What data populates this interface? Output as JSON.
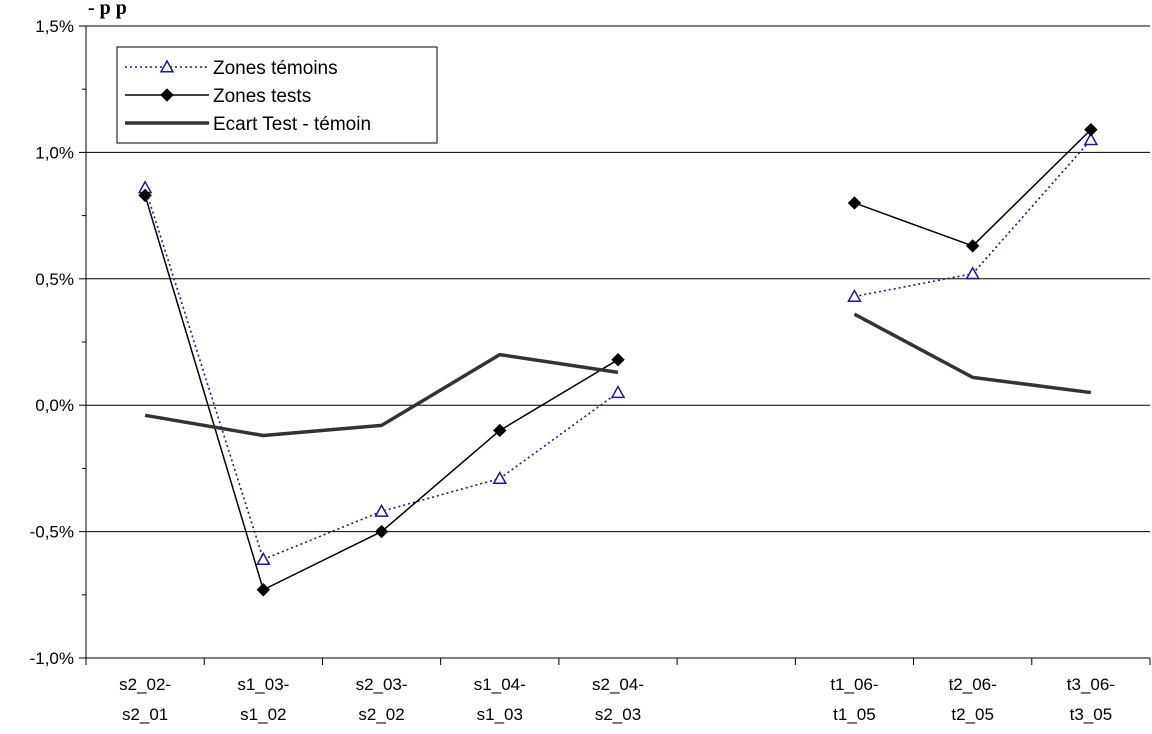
{
  "title_fragment": "- p p",
  "chart_data": {
    "type": "line",
    "categories": [
      [
        "s2_02-",
        "s2_01"
      ],
      [
        "s1_03-",
        "s1_02"
      ],
      [
        "s2_03-",
        "s2_02"
      ],
      [
        "s1_04-",
        "s1_03"
      ],
      [
        "s2_04-",
        "s2_03"
      ],
      [
        "",
        ""
      ],
      [
        "t1_06-",
        "t1_05"
      ],
      [
        "t2_06-",
        "t2_05"
      ],
      [
        "t3_06-",
        "t3_05"
      ]
    ],
    "ylim": [
      -1.0,
      1.5
    ],
    "yticks": [
      -1.0,
      -0.5,
      0.0,
      0.5,
      1.0,
      1.5
    ],
    "ytick_labels": [
      "-1,0%",
      "-0,5%",
      "0,0%",
      "0,5%",
      "1,0%",
      "1,5%"
    ],
    "grid": true,
    "legend_position": "top-left",
    "series": [
      {
        "name": "Zones témoins",
        "style": "dotted",
        "marker": "triangle-open",
        "color": "#1a1a8c",
        "values": [
          0.86,
          -0.61,
          -0.42,
          -0.29,
          0.05,
          null,
          0.43,
          0.52,
          1.05
        ]
      },
      {
        "name": "Zones tests",
        "style": "solid-thin",
        "marker": "diamond-filled",
        "color": "#000000",
        "values": [
          0.83,
          -0.73,
          -0.5,
          -0.1,
          0.18,
          null,
          0.8,
          0.63,
          1.09
        ]
      },
      {
        "name": "Ecart Test - témoin",
        "style": "solid-thick",
        "marker": "none",
        "color": "#333333",
        "values": [
          -0.04,
          -0.12,
          -0.08,
          0.2,
          0.13,
          null,
          0.36,
          0.11,
          0.05
        ]
      }
    ]
  }
}
